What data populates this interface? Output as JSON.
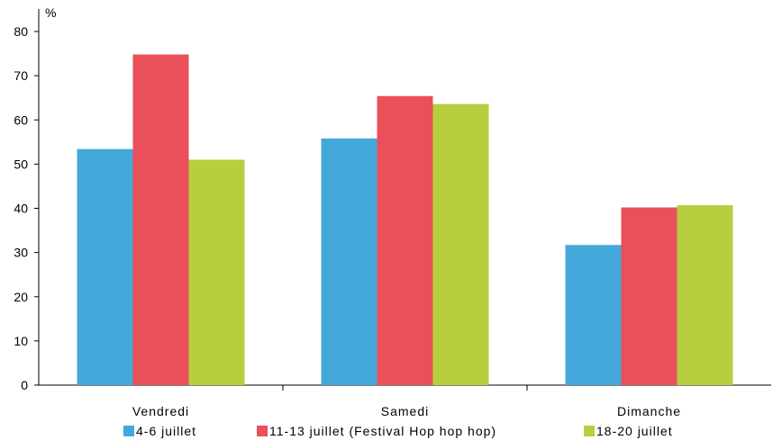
{
  "chart_data": {
    "type": "bar",
    "unit_label": "%",
    "categories": [
      "Vendredi",
      "Samedi",
      "Dimanche"
    ],
    "series": [
      {
        "name": "4-6 juillet",
        "values": [
          53.4,
          55.8,
          31.7
        ],
        "color": "#45a8db"
      },
      {
        "name": "11-13 juillet (Festival Hop hop hop)",
        "values": [
          74.8,
          65.4,
          40.2
        ],
        "color": "#e9505a"
      },
      {
        "name": "18-20 juillet",
        "values": [
          51.0,
          63.6,
          40.7
        ],
        "color": "#b7cf3f"
      }
    ],
    "ylim": [
      0,
      80
    ],
    "yticks": [
      0,
      10,
      20,
      30,
      40,
      50,
      60,
      70,
      80
    ],
    "grid": false,
    "legend_position": "bottom"
  }
}
